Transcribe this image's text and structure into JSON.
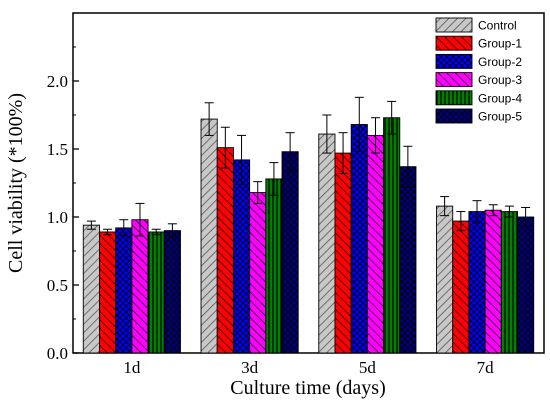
{
  "chart_data": {
    "type": "bar",
    "title": "",
    "xlabel": "Culture time (days)",
    "ylabel": "Cell viability (*100%)",
    "ylim": [
      0,
      2.5
    ],
    "yticks": [
      "0.0",
      "0.5",
      "1.0",
      "1.5",
      "2.0"
    ],
    "categories": [
      "1d",
      "3d",
      "5d",
      "7d"
    ],
    "legend_position": "top-right",
    "series": [
      {
        "name": "Control",
        "color": "#c8c8c8",
        "pattern": "hatch-up",
        "values": [
          0.94,
          1.72,
          1.61,
          1.08
        ],
        "errors": [
          0.03,
          0.12,
          0.14,
          0.07
        ]
      },
      {
        "name": "Group-1",
        "color": "#ff0000",
        "pattern": "hatch-down",
        "values": [
          0.89,
          1.51,
          1.47,
          0.97
        ],
        "errors": [
          0.02,
          0.15,
          0.15,
          0.07
        ]
      },
      {
        "name": "Group-2",
        "color": "#0000ff",
        "pattern": "cross",
        "values": [
          0.92,
          1.42,
          1.68,
          1.04
        ],
        "errors": [
          0.06,
          0.18,
          0.2,
          0.08
        ]
      },
      {
        "name": "Group-3",
        "color": "#ff00ff",
        "pattern": "hatch-down",
        "values": [
          0.98,
          1.18,
          1.6,
          1.05
        ],
        "errors": [
          0.12,
          0.08,
          0.13,
          0.04
        ]
      },
      {
        "name": "Group-4",
        "color": "#008000",
        "pattern": "vertical",
        "values": [
          0.89,
          1.28,
          1.73,
          1.04
        ],
        "errors": [
          0.02,
          0.12,
          0.12,
          0.04
        ]
      },
      {
        "name": "Group-5",
        "color": "#000080",
        "pattern": "cross",
        "values": [
          0.9,
          1.48,
          1.37,
          1.0
        ],
        "errors": [
          0.05,
          0.14,
          0.15,
          0.07
        ]
      }
    ]
  }
}
